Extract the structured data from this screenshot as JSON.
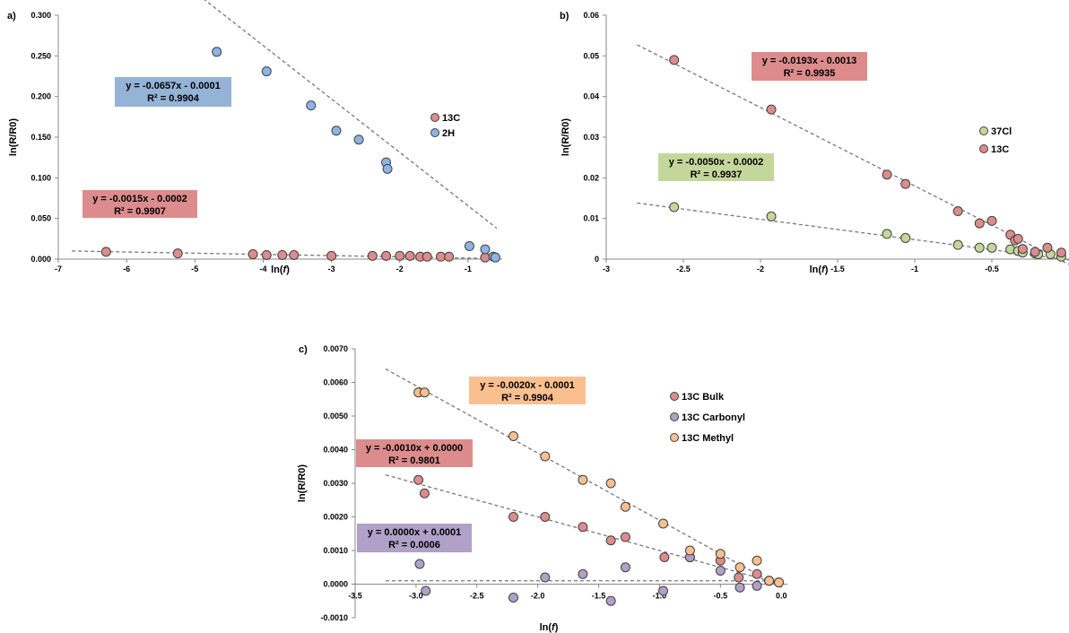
{
  "chart_data": [
    {
      "panel": "a)",
      "type": "scatter",
      "xlabel": "ln(f)",
      "ylabel": "ln(R/R0)",
      "xlim": [
        -7,
        -0.5
      ],
      "ylim": [
        0,
        0.3
      ],
      "xticks": [
        -7,
        -6,
        -5,
        -4,
        -3,
        -2,
        -1
      ],
      "yticks": [
        0,
        0.05,
        0.1,
        0.15,
        0.2,
        0.25,
        0.3
      ],
      "ytick_labels": [
        "0.000",
        "0.050",
        "0.100",
        "0.150",
        "0.200",
        "0.250",
        "0.300"
      ],
      "xtick_labels": [
        "-7",
        "-6",
        "-5",
        "-4",
        "-3",
        "-2",
        "-1"
      ],
      "legend": "right",
      "series": [
        {
          "name": "13C",
          "color": "#dc8c8c",
          "x": [
            -6.3,
            -5.25,
            -4.15,
            -3.95,
            -3.72,
            -3.55,
            -3.0,
            -2.4,
            -2.2,
            -2.0,
            -1.85,
            -1.7,
            -1.6,
            -1.4,
            -1.28,
            -0.75
          ],
          "y": [
            0.009,
            0.007,
            0.006,
            0.005,
            0.005,
            0.005,
            0.004,
            0.004,
            0.004,
            0.004,
            0.004,
            0.003,
            0.003,
            0.003,
            0.003,
            0.002
          ],
          "trend": {
            "slope": -0.0015,
            "intercept": -0.0002,
            "x_range": [
              -6.8,
              -0.6
            ]
          },
          "equation": "y = -0.0015x - 0.0002",
          "r2": "R² = 0.9907"
        },
        {
          "name": "2H",
          "color": "#8db4e2",
          "x": [
            -4.68,
            -3.95,
            -3.3,
            -2.93,
            -2.6,
            -2.2,
            -2.18,
            -0.98,
            -0.75,
            -0.63,
            -0.6
          ],
          "y": [
            0.255,
            0.231,
            0.189,
            0.158,
            0.147,
            0.119,
            0.111,
            0.016,
            0.012,
            0.003,
            0.002
          ],
          "trend": {
            "slope": -0.0657,
            "intercept": -0.0001,
            "x_range": [
              -4.95,
              -0.58
            ]
          },
          "equation": "y = -0.0657x - 0.0001",
          "r2": "R² = 0.9904"
        }
      ]
    },
    {
      "panel": "b)",
      "type": "scatter",
      "xlabel": "ln(f)",
      "ylabel": "ln(R/R0)",
      "xlim": [
        -3,
        0
      ],
      "ylim": [
        0,
        0.06
      ],
      "xticks": [
        -3,
        -2.5,
        -2,
        -1.5,
        -1,
        -0.5
      ],
      "xtick_labels": [
        "-3",
        "-2.5",
        "-2",
        "-1.5",
        "-1",
        "-0.5"
      ],
      "yticks": [
        0,
        0.01,
        0.02,
        0.03,
        0.04,
        0.05,
        0.06
      ],
      "ytick_labels": [
        "0",
        "0.01",
        "0.02",
        "0.03",
        "0.04",
        "0.05",
        "0.06"
      ],
      "legend": "right",
      "series": [
        {
          "name": "37Cl",
          "color": "#c4d79b",
          "x": [
            -2.56,
            -1.93,
            -1.18,
            -1.06,
            -0.72,
            -0.58,
            -0.5,
            -0.38,
            -0.33,
            -0.3,
            -0.22,
            -0.2,
            -0.12,
            -0.05,
            0.0
          ],
          "y": [
            0.0128,
            0.0105,
            0.0062,
            0.0052,
            0.0035,
            0.0028,
            0.0028,
            0.0024,
            0.002,
            0.0016,
            0.0014,
            0.0012,
            0.0012,
            0.0006,
            0.0003
          ],
          "trend": {
            "slope": -0.005,
            "intercept": -0.0002,
            "x_range": [
              -2.8,
              0
            ]
          },
          "equation": "y = -0.0050x - 0.0002",
          "r2": "R² = 0.9937"
        },
        {
          "name": "13C",
          "color": "#dc8c8c",
          "x": [
            -2.56,
            -1.93,
            -1.18,
            -1.06,
            -0.72,
            -0.58,
            -0.5,
            -0.38,
            -0.35,
            -0.33,
            -0.3,
            -0.22,
            -0.14,
            -0.05,
            0.0
          ],
          "y": [
            0.049,
            0.0368,
            0.0208,
            0.0185,
            0.0118,
            0.0088,
            0.0094,
            0.006,
            0.0046,
            0.005,
            0.0025,
            0.0018,
            0.0028,
            0.0016,
            0.0005
          ],
          "trend": {
            "slope": -0.0193,
            "intercept": -0.0013,
            "x_range": [
              -2.8,
              0
            ]
          },
          "equation": "y = -0.0193x - 0.0013",
          "r2": "R² = 0.9935"
        }
      ]
    },
    {
      "panel": "c)",
      "type": "scatter",
      "xlabel": "ln(f)",
      "ylabel": "ln(R/R0)",
      "xlim": [
        -3.5,
        0.05
      ],
      "ylim": [
        -0.001,
        0.007
      ],
      "xticks": [
        -3.5,
        -3.0,
        -2.5,
        -2.0,
        -1.5,
        -1.0,
        -0.5,
        0.0
      ],
      "xtick_labels": [
        "-3.5",
        "-3.0",
        "-2.5",
        "-2.0",
        "-1.5",
        "-1.0",
        "-0.5",
        "0.0"
      ],
      "yticks": [
        -0.001,
        0,
        0.001,
        0.002,
        0.003,
        0.004,
        0.005,
        0.006,
        0.007
      ],
      "ytick_labels": [
        "-0.0010",
        "0.0000",
        "0.0010",
        "0.0020",
        "0.0030",
        "0.0040",
        "0.0050",
        "0.0060",
        "0.0070"
      ],
      "legend": "right",
      "series": [
        {
          "name": "13C Bulk",
          "color": "#dc8c8c",
          "x": [
            -2.98,
            -2.93,
            -2.2,
            -1.94,
            -1.63,
            -1.4,
            -1.28,
            -0.96,
            -0.75,
            -0.5,
            -0.35,
            -0.2,
            -0.1,
            -0.02
          ],
          "y": [
            0.0031,
            0.0027,
            0.002,
            0.002,
            0.0017,
            0.0013,
            0.0014,
            0.0008,
            0.0008,
            0.0007,
            0.0002,
            0.0003,
            0.0001,
            5e-05
          ],
          "trend": {
            "slope": -0.001,
            "intercept": 0.0,
            "x_range": [
              -3.25,
              0
            ]
          },
          "equation": "y = -0.0010x + 0.0000",
          "r2": "R² = 0.9801"
        },
        {
          "name": "13C Carbonyl",
          "color": "#b1a0c7",
          "x": [
            -2.97,
            -2.92,
            -2.2,
            -1.94,
            -1.63,
            -1.4,
            -1.28,
            -0.97,
            -0.75,
            -0.5,
            -0.34,
            -0.2,
            -0.1
          ],
          "y": [
            0.0006,
            -0.0002,
            -0.0004,
            0.0002,
            0.0003,
            -0.0005,
            0.0005,
            -0.0002,
            0.0008,
            0.0004,
            -0.0001,
            -5e-05,
            0.0001
          ],
          "trend": {
            "slope": 0.0,
            "intercept": 0.0001,
            "x_range": [
              -3.25,
              0
            ]
          },
          "equation": "y = 0.0000x + 0.0001",
          "r2": "R² = 0.0006"
        },
        {
          "name": "13C Methyl",
          "color": "#fabf8f",
          "x": [
            -2.98,
            -2.93,
            -2.2,
            -1.94,
            -1.63,
            -1.4,
            -1.28,
            -0.97,
            -0.75,
            -0.5,
            -0.34,
            -0.2,
            -0.1,
            -0.02
          ],
          "y": [
            0.0057,
            0.0057,
            0.0044,
            0.0038,
            0.0031,
            0.003,
            0.0023,
            0.0018,
            0.001,
            0.0009,
            0.0005,
            0.0007,
            0.0001,
            5e-05
          ],
          "trend": {
            "slope": -0.002,
            "intercept": -0.0001,
            "x_range": [
              -3.25,
              0
            ]
          },
          "equation": "y = -0.0020x - 0.0001",
          "r2": "R² = 0.9904"
        }
      ]
    }
  ]
}
